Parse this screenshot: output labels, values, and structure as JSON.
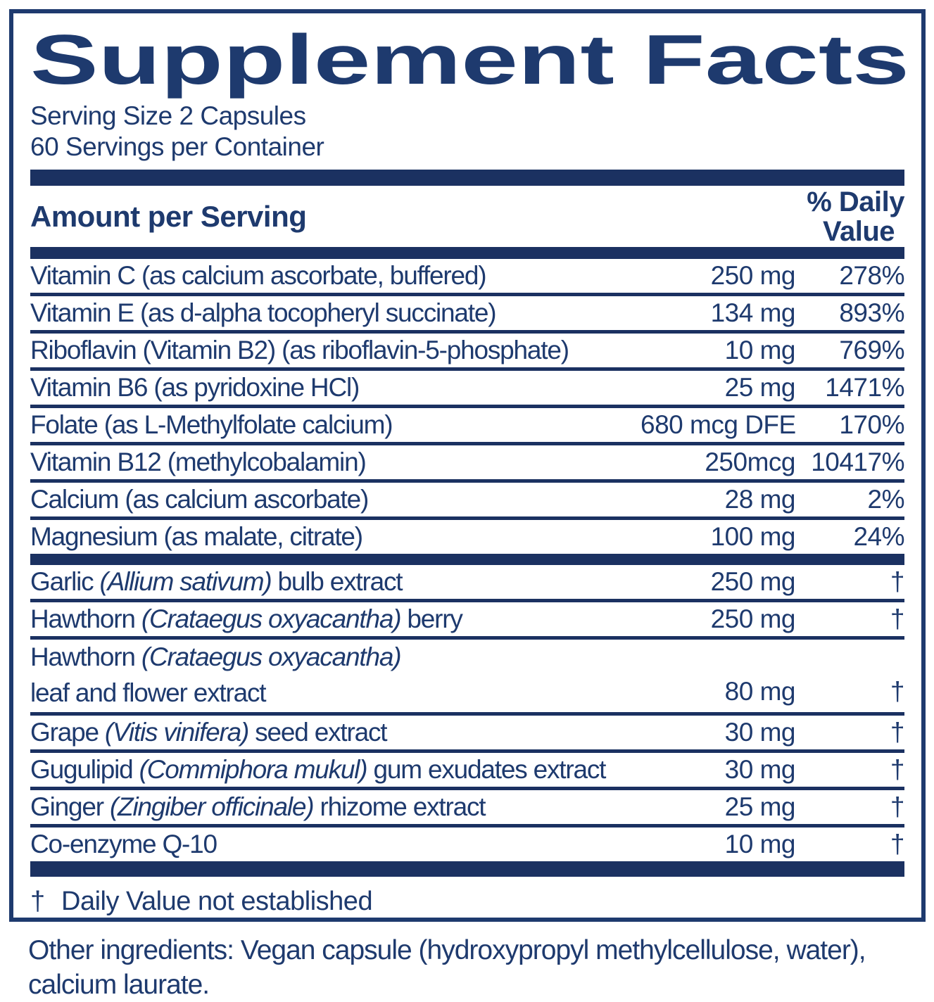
{
  "colors": {
    "text_navy": "#1e3a6e",
    "bar_navy": "#1b3161"
  },
  "label": {
    "title": "Supplement Facts",
    "serving_size": "Serving Size 2 Capsules",
    "servings_per_container": "60 Servings per Container",
    "header": {
      "amount_per_serving": "Amount per Serving",
      "daily_value_line1": "% Daily",
      "daily_value_line2": "Value"
    },
    "rows": [
      {
        "name_parts": [
          {
            "t": "Vitamin C (as calcium ascorbate, buffered)",
            "i": false
          }
        ],
        "amount": "250 mg",
        "dv": "278%",
        "sep_after": "rule"
      },
      {
        "name_parts": [
          {
            "t": "Vitamin E (as d-alpha tocopheryl succinate)",
            "i": false
          }
        ],
        "amount": "134 mg",
        "dv": "893%",
        "sep_after": "rule"
      },
      {
        "name_parts": [
          {
            "t": "Riboflavin (Vitamin B2) (as riboflavin-5-phosphate)",
            "i": false
          }
        ],
        "amount": "10 mg",
        "dv": "769%",
        "sep_after": "rule"
      },
      {
        "name_parts": [
          {
            "t": "Vitamin B6 (as pyridoxine HCl)",
            "i": false
          }
        ],
        "amount": "25 mg",
        "dv": "1471%",
        "sep_after": "rule"
      },
      {
        "name_parts": [
          {
            "t": "Folate (as L-Methylfolate calcium)",
            "i": false
          }
        ],
        "amount": "680 mcg DFE",
        "dv": "170%",
        "sep_after": "rule"
      },
      {
        "name_parts": [
          {
            "t": "Vitamin B12 (methylcobalamin)",
            "i": false
          }
        ],
        "amount": "250mcg",
        "dv": "10417%",
        "sep_after": "rule"
      },
      {
        "name_parts": [
          {
            "t": "Calcium (as calcium ascorbate)",
            "i": false
          }
        ],
        "amount": "28 mg",
        "dv": "2%",
        "sep_after": "rule"
      },
      {
        "name_parts": [
          {
            "t": "Magnesium (as malate, citrate)",
            "i": false
          }
        ],
        "amount": "100 mg",
        "dv": "24%",
        "sep_after": "bar"
      },
      {
        "name_parts": [
          {
            "t": "Garlic ",
            "i": false
          },
          {
            "t": "(Allium sativum)",
            "i": true
          },
          {
            "t": " bulb extract",
            "i": false
          }
        ],
        "amount": "250 mg",
        "dv": "†",
        "sep_after": "rule"
      },
      {
        "name_parts": [
          {
            "t": "Hawthorn ",
            "i": false
          },
          {
            "t": "(Crataegus oxyacantha)",
            "i": true
          },
          {
            "t": " berry",
            "i": false
          }
        ],
        "amount": "250 mg",
        "dv": "†",
        "sep_after": "rule"
      },
      {
        "two_line": true,
        "name_line1_parts": [
          {
            "t": "Hawthorn ",
            "i": false
          },
          {
            "t": "(Crataegus oxyacantha)",
            "i": true
          }
        ],
        "name_parts": [
          {
            "t": "leaf and flower extract",
            "i": false
          }
        ],
        "amount": "80 mg",
        "dv": "†",
        "sep_after": "rule"
      },
      {
        "name_parts": [
          {
            "t": "Grape ",
            "i": false
          },
          {
            "t": "(Vitis vinifera)",
            "i": true
          },
          {
            "t": " seed extract",
            "i": false
          }
        ],
        "amount": "30 mg",
        "dv": "†",
        "sep_after": "rule"
      },
      {
        "name_parts": [
          {
            "t": "Gugulipid ",
            "i": false
          },
          {
            "t": "(Commiphora mukul)",
            "i": true
          },
          {
            "t": " gum exudates extract",
            "i": false
          }
        ],
        "amount": "30 mg",
        "dv": "†",
        "sep_after": "rule"
      },
      {
        "name_parts": [
          {
            "t": "Ginger ",
            "i": false
          },
          {
            "t": "(Zingiber officinale)",
            "i": true
          },
          {
            "t": " rhizome extract",
            "i": false
          }
        ],
        "amount": "25 mg",
        "dv": "†",
        "sep_after": "bar-none-rule"
      },
      {
        "name_parts": [
          {
            "t": "Co-enzyme Q-10",
            "i": false
          }
        ],
        "amount": "10 mg",
        "dv": "†",
        "sep_after": "bar-thick"
      }
    ],
    "footnote": {
      "symbol": "†",
      "text": "Daily Value not established"
    },
    "other_ingredients": "Other ingredients: Vegan capsule (hydroxypropyl methylcellulose, water), calcium laurate."
  }
}
